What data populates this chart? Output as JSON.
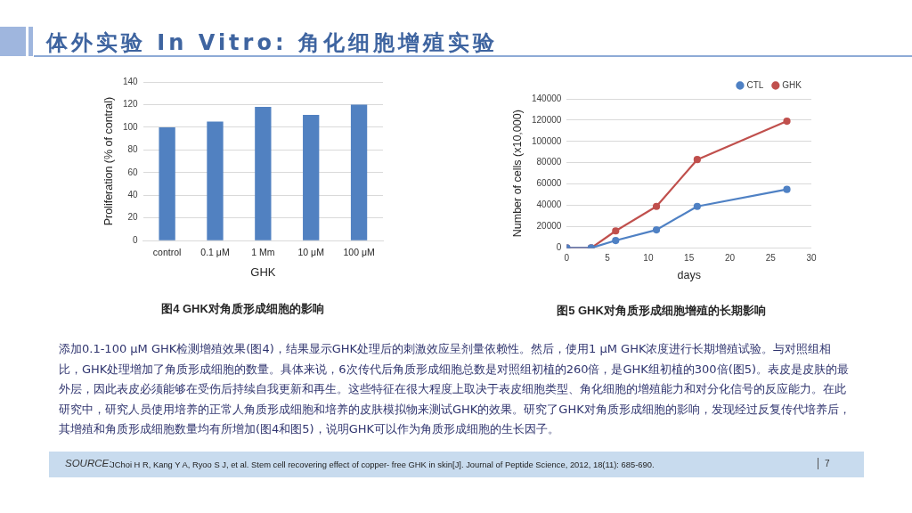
{
  "chart_data": [
    {
      "type": "bar",
      "title": "图4 GHK对角质形成细胞的影响",
      "categories": [
        "control",
        "0.1 μM",
        "1 Mm",
        "10 μM",
        "100 μM"
      ],
      "values": [
        100,
        105,
        118,
        111,
        120
      ],
      "color": "#5181c1",
      "xlabel": "GHK",
      "ylabel": "Proliferation (% of contral)",
      "ylim": [
        0,
        140
      ],
      "yticks": [
        0,
        20,
        40,
        60,
        80,
        100,
        120,
        140
      ],
      "grid": "y"
    },
    {
      "type": "line",
      "title": "图5 GHK对角质形成细胞增殖的长期影响",
      "x": [
        0,
        3,
        6,
        11,
        16,
        27
      ],
      "series": [
        {
          "name": "CTL",
          "color": "#4f81c4",
          "values": [
            0,
            0,
            7000,
            17000,
            39000,
            55000
          ]
        },
        {
          "name": "GHK",
          "color": "#c0504d",
          "values": [
            0,
            0,
            16000,
            39000,
            83000,
            119000
          ]
        }
      ],
      "xlabel": "days",
      "ylabel": "Number of cells (x10,000)",
      "xlim": [
        0,
        30
      ],
      "xticks": [
        0,
        5,
        10,
        15,
        20,
        25,
        30
      ],
      "ylim": [
        0,
        140000
      ],
      "yticks": [
        0,
        20000,
        40000,
        60000,
        80000,
        100000,
        120000,
        140000
      ],
      "grid": "y",
      "legend": "top right",
      "marker": "circle"
    },
    {
      "type": "other",
      "title": "体外实验 In Vitro: 角化细胞增殖实验",
      "annotations": [
        "添加0.1-100 μM GHK检测增殖效果(图4)，结果显示GHK处理后的刺激效应呈剂量依赖性。然后，使用1 μM GHK浓度进行长期增殖试验。与对照组相比，GHK处理增加了角质形成细胞的数量。具体来说，6次传代后角质形成细胞总数是对照组初植的260倍，是GHK组初植的300倍(图5)。表皮是皮肤的最外层，因此表皮必须能够在受伤后持续自我更新和再生。这些特征在很大程度上取决于表皮细胞类型、角化细胞的增殖能力和对分化信号的反应能力。在此研究中，研究人员使用培养的正常人角质形成细胞和培养的皮肤模拟物来测试GHK的效果。研究了GHK对角质形成细胞的影响，发现经过反复传代培养后，其增殖和角质形成细胞数量均有所增加(图4和图5)，说明GHK可以作为角质形成细胞的生长因子。",
        "SOURCE:",
        "JChoi H R, Kang Y A, Ryoo S J, et al. Stem cell recovering effect of copper-  free GHK in skin[J]. Journal of Peptide Science, 2012, 18(11): 685-690.",
        "7"
      ]
    }
  ]
}
